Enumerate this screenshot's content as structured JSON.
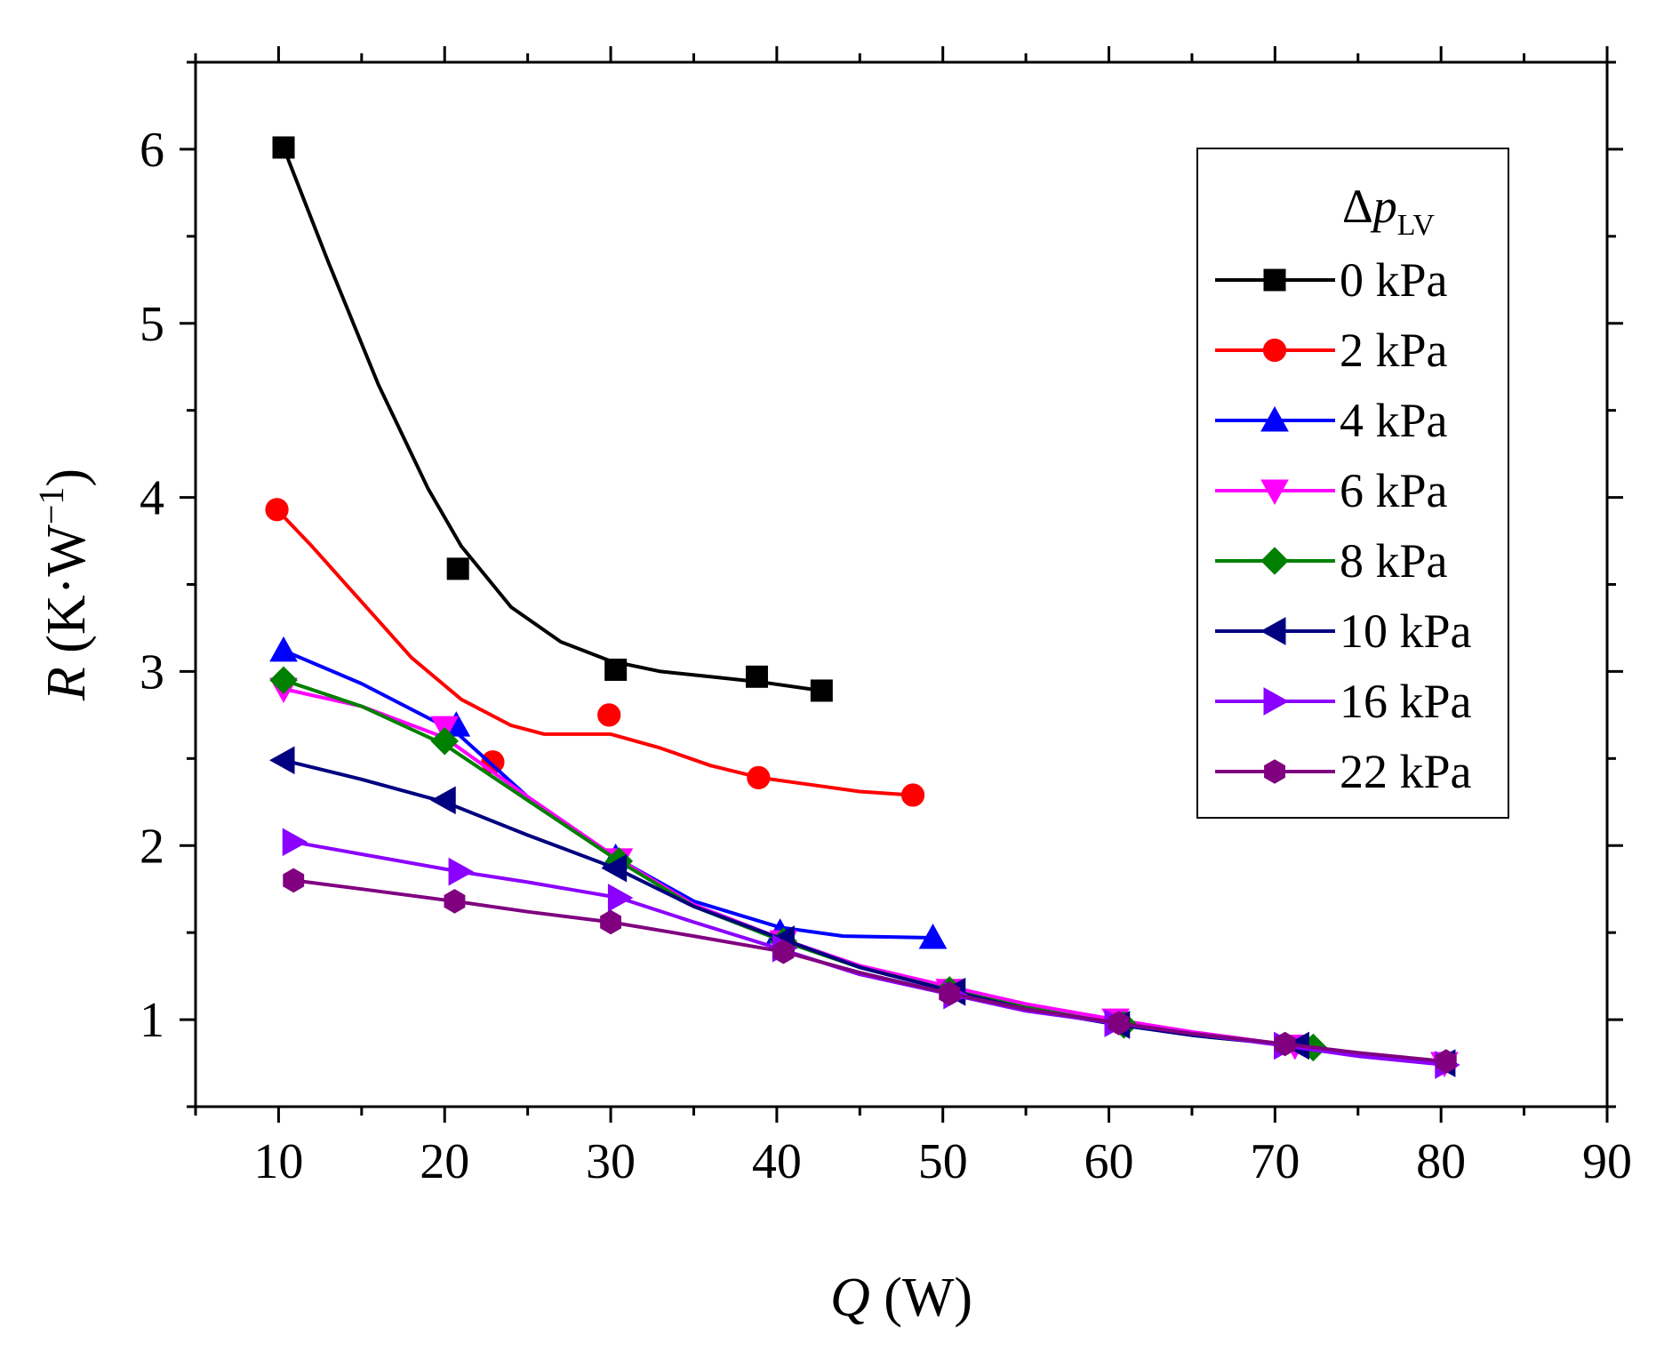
{
  "chart_data": {
    "type": "line",
    "title": "",
    "xlabel": {
      "symbol": "Q",
      "unit": " (W)"
    },
    "ylabel": {
      "symbol": "R",
      "unit_open": " (K·W",
      "unit_sup": "−1",
      "unit_close": ")"
    },
    "xlim": [
      5,
      90
    ],
    "ylim": [
      0.5,
      6.5
    ],
    "xticks": [
      10,
      20,
      30,
      40,
      50,
      60,
      70,
      80,
      90
    ],
    "yticks": [
      1,
      2,
      3,
      4,
      5,
      6
    ],
    "grid": false,
    "legend": {
      "position": "top-right",
      "title_symbol": "Δp",
      "title_subscript": "LV"
    },
    "series": [
      {
        "name": "0 kPa",
        "color": "#000000",
        "marker": "square",
        "x": [
          10.3,
          20.8,
          30.3,
          38.8,
          42.7
        ],
        "y": [
          6.01,
          3.59,
          3.01,
          2.97,
          2.89
        ],
        "curve_x": [
          10.3,
          13,
          16,
          19,
          21,
          24,
          27,
          30,
          33,
          36,
          39,
          42.7
        ],
        "curve_y": [
          6.01,
          5.35,
          4.65,
          4.05,
          3.72,
          3.37,
          3.17,
          3.06,
          3.0,
          2.97,
          2.94,
          2.89
        ]
      },
      {
        "name": "2 kPa",
        "color": "#ff0000",
        "marker": "circle",
        "x": [
          9.9,
          22.9,
          29.9,
          38.9,
          48.2
        ],
        "y": [
          3.93,
          2.48,
          2.75,
          2.39,
          2.29
        ],
        "curve_x": [
          9.9,
          12,
          15,
          18,
          21,
          24,
          26,
          28,
          30,
          33,
          36,
          39,
          42,
          45,
          48.2
        ],
        "curve_y": [
          3.93,
          3.72,
          3.4,
          3.08,
          2.84,
          2.69,
          2.64,
          2.64,
          2.64,
          2.56,
          2.46,
          2.39,
          2.35,
          2.31,
          2.29
        ]
      },
      {
        "name": "4 kPa",
        "color": "#0000ff",
        "marker": "triangle-up",
        "x": [
          10.3,
          20.7,
          30.3,
          40.2,
          49.4
        ],
        "y": [
          3.12,
          2.69,
          1.93,
          1.5,
          1.47
        ],
        "curve_x": [
          10.3,
          15,
          20.7,
          25,
          30.3,
          35,
          40.2,
          44,
          49.4
        ],
        "curve_y": [
          3.12,
          2.93,
          2.65,
          2.28,
          1.93,
          1.68,
          1.53,
          1.48,
          1.47
        ]
      },
      {
        "name": "6 kPa",
        "color": "#ff00ff",
        "marker": "triangle-down",
        "x": [
          10.3,
          20.0,
          30.5,
          40.4,
          50.4,
          60.4,
          71.2,
          80.2
        ],
        "y": [
          2.9,
          2.68,
          1.92,
          1.45,
          1.17,
          1.0,
          0.85,
          0.75
        ],
        "curve_x": [
          10.3,
          15,
          20.0,
          25,
          30.5,
          35,
          40.4,
          45,
          50.4,
          55,
          60.4,
          65,
          71.2,
          75,
          80.2
        ],
        "curve_y": [
          2.9,
          2.8,
          2.62,
          2.28,
          1.92,
          1.66,
          1.46,
          1.31,
          1.19,
          1.09,
          1.0,
          0.93,
          0.85,
          0.8,
          0.75
        ]
      },
      {
        "name": "8 kPa",
        "color": "#008000",
        "marker": "diamond",
        "x": [
          10.3,
          20.0,
          30.5,
          40.4,
          50.4,
          60.9,
          72.3
        ],
        "y": [
          2.95,
          2.6,
          1.91,
          1.45,
          1.17,
          0.97,
          0.84
        ],
        "curve_x": [
          10.3,
          15,
          20.0,
          25,
          30.5,
          35,
          40.4,
          45,
          50.4,
          55,
          60.9,
          66,
          72.3
        ],
        "curve_y": [
          2.95,
          2.8,
          2.58,
          2.26,
          1.91,
          1.65,
          1.45,
          1.3,
          1.17,
          1.07,
          0.97,
          0.9,
          0.84
        ]
      },
      {
        "name": "10 kPa",
        "color": "#000080",
        "marker": "triangle-left",
        "x": [
          10.3,
          20.0,
          30.3,
          40.4,
          50.7,
          60.6,
          71.4,
          80.2
        ],
        "y": [
          2.49,
          2.26,
          1.87,
          1.46,
          1.16,
          0.97,
          0.85,
          0.75
        ],
        "curve_x": [
          10.3,
          15,
          20.0,
          25,
          30.3,
          35,
          40.4,
          45,
          50.7,
          55,
          60.6,
          65,
          71.4,
          75,
          80.2
        ],
        "curve_y": [
          2.49,
          2.38,
          2.25,
          2.06,
          1.87,
          1.65,
          1.46,
          1.3,
          1.16,
          1.06,
          0.97,
          0.91,
          0.85,
          0.8,
          0.75
        ]
      },
      {
        "name": "16 kPa",
        "color": "#8b00ff",
        "marker": "triangle-right",
        "x": [
          10.9,
          20.9,
          30.5,
          40.4,
          50.7,
          60.4,
          70.6,
          80.3
        ],
        "y": [
          2.02,
          1.85,
          1.7,
          1.41,
          1.14,
          0.98,
          0.85,
          0.74
        ],
        "curve_x": [
          10.9,
          15,
          20.9,
          25,
          30.5,
          35,
          40.4,
          45,
          50.7,
          55,
          60.4,
          65,
          70.6,
          75,
          80.3
        ],
        "curve_y": [
          2.02,
          1.95,
          1.85,
          1.79,
          1.7,
          1.56,
          1.4,
          1.26,
          1.14,
          1.05,
          0.98,
          0.92,
          0.85,
          0.79,
          0.74
        ]
      },
      {
        "name": "22 kPa",
        "color": "#800080",
        "marker": "hexagon",
        "x": [
          10.9,
          20.6,
          30.0,
          40.4,
          50.4,
          60.6,
          70.6,
          80.3
        ],
        "y": [
          1.8,
          1.68,
          1.56,
          1.39,
          1.15,
          0.98,
          0.86,
          0.76
        ],
        "curve_x": [
          10.9,
          15,
          20.6,
          25,
          30.0,
          35,
          40.4,
          45,
          50.4,
          55,
          60.6,
          65,
          70.6,
          75,
          80.3
        ],
        "curve_y": [
          1.8,
          1.75,
          1.68,
          1.62,
          1.56,
          1.48,
          1.39,
          1.27,
          1.15,
          1.06,
          0.98,
          0.92,
          0.86,
          0.81,
          0.76
        ]
      }
    ]
  }
}
